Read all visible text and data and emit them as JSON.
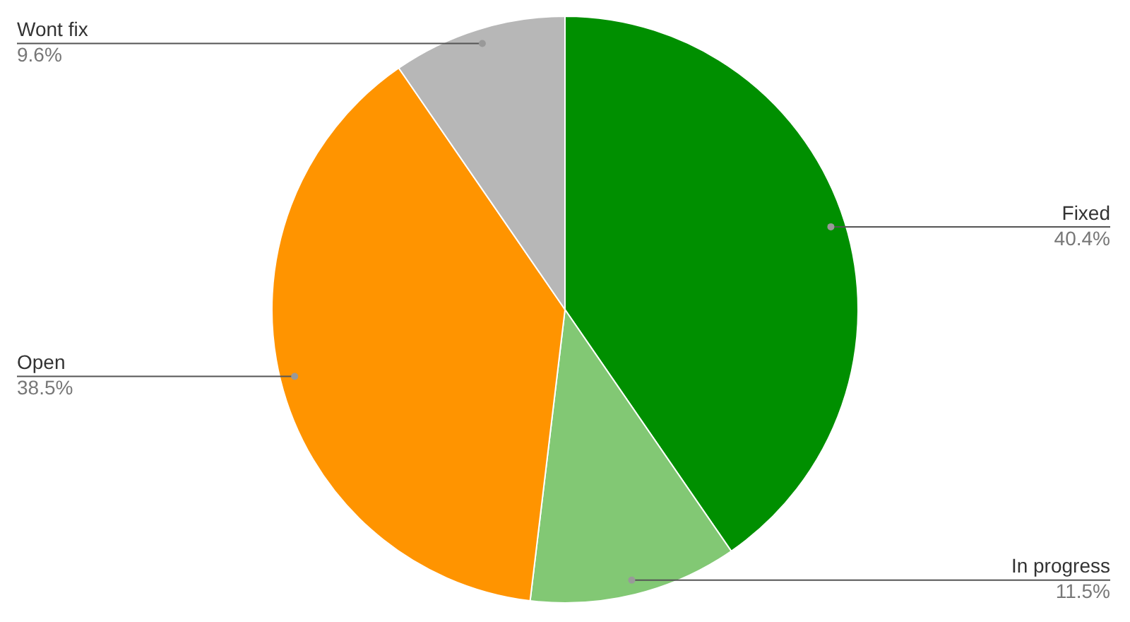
{
  "chart_data": {
    "type": "pie",
    "categories": [
      "Fixed",
      "In progress",
      "Open",
      "Wont fix"
    ],
    "values": [
      40.4,
      11.5,
      38.5,
      9.6
    ],
    "value_labels": [
      "40.4%",
      "11.5%",
      "38.5%",
      "9.6%"
    ],
    "colors": [
      "#008f00",
      "#82c874",
      "#ff9400",
      "#b7b7b7"
    ],
    "legend": false
  }
}
